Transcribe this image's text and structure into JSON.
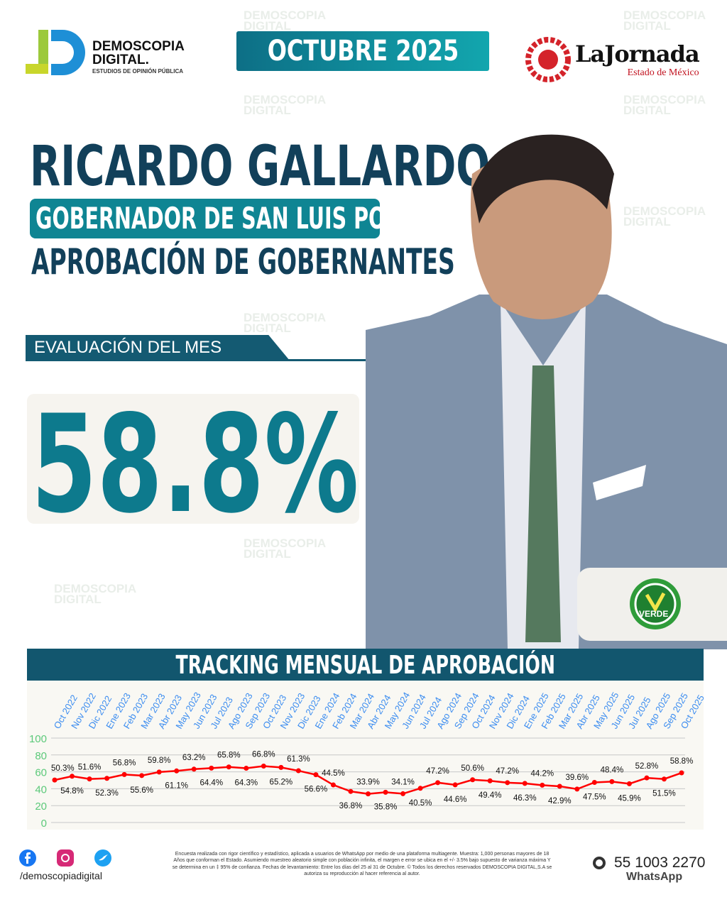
{
  "header": {
    "brand_title": "DEMOSCOPIA",
    "brand_title2": "DIGITAL.",
    "brand_subtitle": "ESTUDIOS DE OPINIÓN PÚBLICA",
    "month": "OCTUBRE 2025",
    "partner_name": "LaJornada",
    "partner_sub": "Estado de México"
  },
  "hero": {
    "name": "RICARDO GALLARDO",
    "role": "GOBERNADOR DE SAN LUIS POTOSÍ",
    "subtitle": "APROBACIÓN DE GOBERNANTES",
    "eval_label": "EVALUACIÓN DEL MES",
    "eval_value": "58.8%",
    "party_label": "VERDE"
  },
  "watermark": {
    "line1": "DEMOSCOPIA",
    "line2": "DIGITAL"
  },
  "chart_data": {
    "type": "line",
    "title": "TRACKING MENSUAL DE APROBACIÓN",
    "categories": [
      "Oct 2022",
      "Nov 2022",
      "Dic 2022",
      "Ene 2023",
      "Feb 2023",
      "Mar 2023",
      "Abr 2023",
      "May 2023",
      "Jun 2023",
      "Jul 2023",
      "Ago 2023",
      "Sep 2023",
      "Oct 2023",
      "Nov 2023",
      "Dic 2023",
      "Ene 2024",
      "Feb 2024",
      "Mar 2024",
      "Abr 2024",
      "May 2024",
      "Jun 2024",
      "Jul 2024",
      "Ago 2024",
      "Sep 2024",
      "Oct 2024",
      "Nov 2024",
      "Dic 2024",
      "Ene 2025",
      "Feb 2025",
      "Mar 2025",
      "Abr 2025",
      "May 2025",
      "Jun 2025",
      "Jul 2025",
      "Ago 2025",
      "Sep 2025",
      "Oct 2025"
    ],
    "values": [
      50.3,
      54.8,
      51.6,
      52.3,
      56.8,
      55.6,
      59.8,
      61.1,
      63.2,
      64.4,
      65.8,
      64.3,
      66.8,
      65.2,
      61.3,
      56.6,
      44.5,
      36.8,
      33.9,
      35.8,
      34.1,
      40.5,
      47.2,
      44.6,
      50.6,
      49.4,
      47.2,
      46.3,
      44.2,
      42.9,
      39.6,
      47.5,
      48.4,
      45.9,
      52.8,
      51.5,
      58.8
    ],
    "ylim": [
      0,
      100
    ],
    "yticks": [
      0,
      20,
      40,
      60,
      80,
      100
    ],
    "grid": true,
    "colors": {
      "line": "#ff0000",
      "xtick": "#3b8cf0",
      "ytick": "#5cc97a"
    }
  },
  "footer": {
    "handle": "/demoscopiadigital",
    "disclaimer": "Encuesta realizada con rigor científico y estadístico, aplicada a usuarios de WhatsApp por medio de una plataforma multiagente. Muestra: 1,000 personas mayores de 18 Años que conforman el Estado. Asumiendo muestreo aleatorio simple con población infinita, el margen e error se ubica en el +/- 3.5% bajo supuesto de varianza máxima Y se determina en un ‡ 95% de confianza. Fechas de levantamiento: Entre los días del 25 al 31 de Octubre. © Todos los derechos reservados DEMOSCOPIA DIGITAL,S.A se autoriza su reproducción al hacer referencia al autor.",
    "phone": "55 1003 2270",
    "whatsapp_label": "WhatsApp",
    "social_icons": [
      "facebook-icon",
      "instagram-icon",
      "twitter-icon"
    ]
  }
}
